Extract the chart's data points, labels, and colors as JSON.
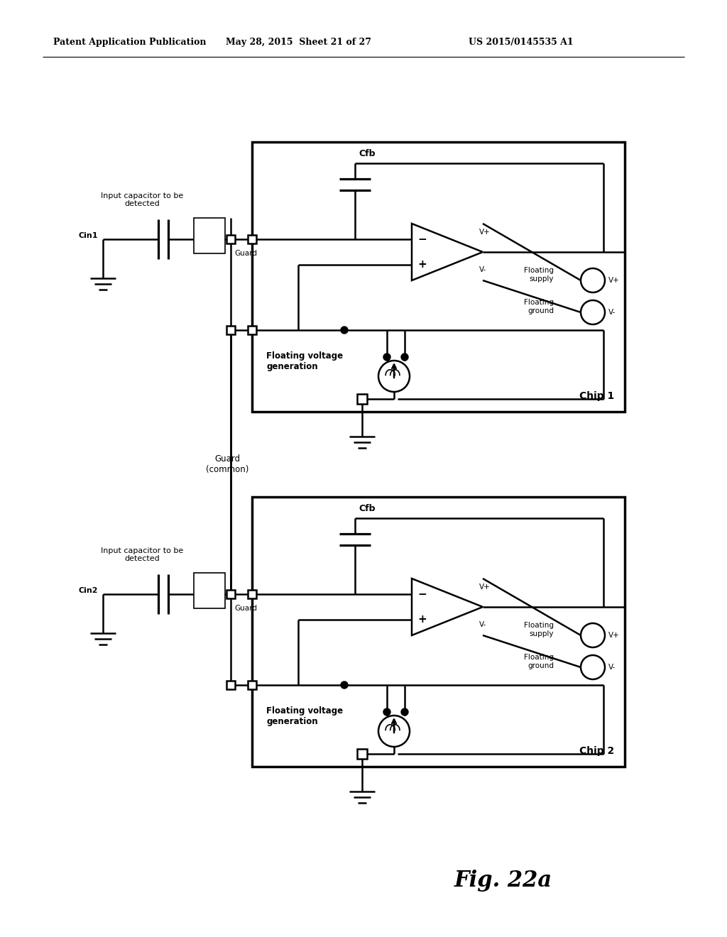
{
  "header_left": "Patent Application Publication",
  "header_mid": "May 28, 2015  Sheet 21 of 27",
  "header_right": "US 2015/0145535 A1",
  "fig_label": "Fig. 22a",
  "bg_color": "#ffffff",
  "line_color": "#000000",
  "chip1_label": "Chip 1",
  "chip2_label": "Chip 2",
  "cin1_label": "Cin1",
  "cin2_label": "Cin2",
  "cfb_label": "Cfb",
  "guard_label": "Guard",
  "guard_common_label": "Guard\n(common)",
  "input_cap_label": "Input capacitor to be\ndetected",
  "floating_voltage_label": "Floating voltage\ngeneration",
  "floating_supply_label": "Floating\nsupply",
  "floating_ground_label": "Floating\nground",
  "vplus_label": "V+",
  "vminus_label": "V-"
}
